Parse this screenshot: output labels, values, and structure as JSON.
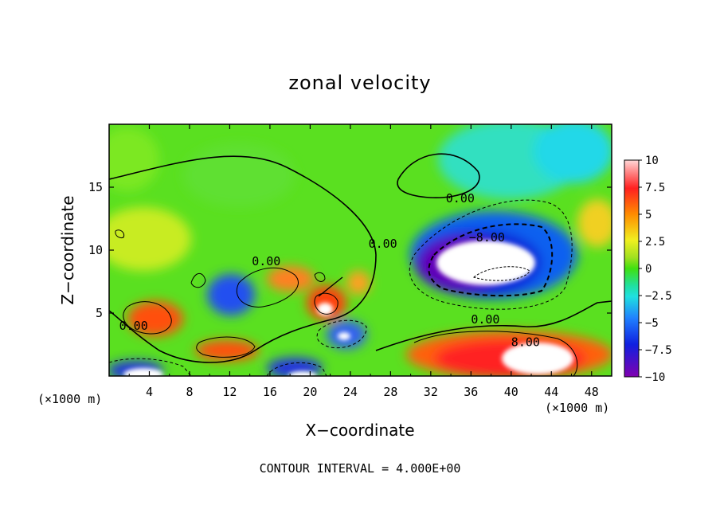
{
  "chart_data": {
    "type": "heatmap",
    "title": "zonal velocity",
    "xlabel": "X−coordinate",
    "ylabel": "Z−coordinate",
    "x_unit_left": "(×1000 m)",
    "x_unit_right": "(×1000 m)",
    "xlim": [
      0,
      50
    ],
    "ylim": [
      0,
      20
    ],
    "x_ticks": [
      4,
      8,
      12,
      16,
      20,
      24,
      28,
      32,
      36,
      40,
      44,
      48
    ],
    "y_ticks": [
      5,
      10,
      15
    ],
    "colorbar": {
      "vmin": -10,
      "vmax": 10,
      "ticks": [
        10,
        7.5,
        5,
        2.5,
        0,
        -2.5,
        -5,
        -7.5,
        -10
      ],
      "tick_labels": [
        "10",
        "7.5",
        "5",
        "2.5",
        "0",
        "−2.5",
        "−5",
        "−7.5",
        "−10"
      ]
    },
    "contour_labels": [
      {
        "text": "0.00",
        "x": 33.5,
        "z": 14.1
      },
      {
        "text": "0.00",
        "x": 25.8,
        "z": 10.5
      },
      {
        "text": "0.00",
        "x": 14.2,
        "z": 9.1
      },
      {
        "text": "0.00",
        "x": 1.0,
        "z": 4.0
      },
      {
        "text": "0.00",
        "x": 36.0,
        "z": 4.5
      },
      {
        "text": "−8.00",
        "x": 35.8,
        "z": 11.0
      },
      {
        "text": "8.00",
        "x": 40.0,
        "z": 2.7
      }
    ],
    "footer": "CONTOUR INTERVAL = 4.000E+00"
  },
  "colors": {
    "high_positive": "#ff2020",
    "zero": "#40e010",
    "high_negative": "#8000b0"
  }
}
